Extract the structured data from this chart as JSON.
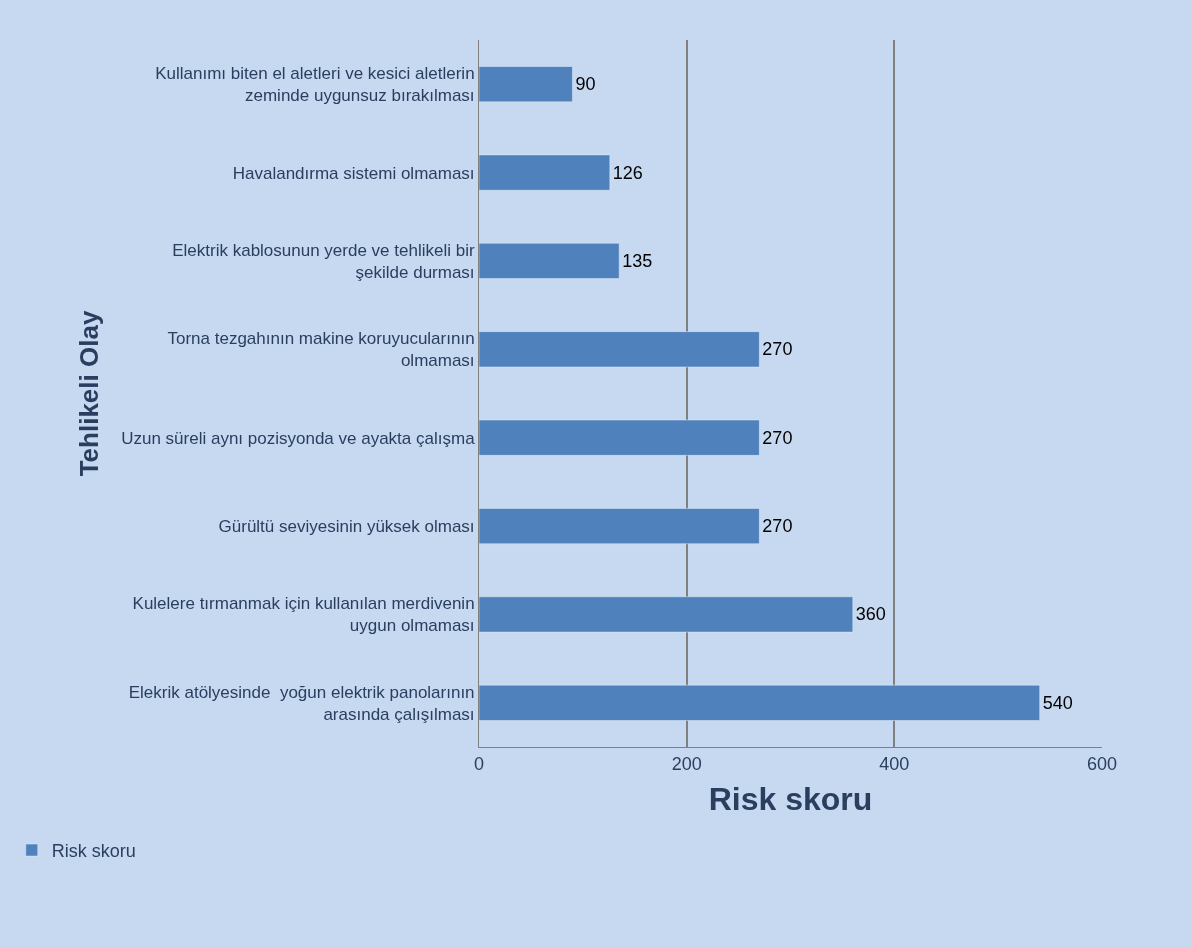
{
  "chart_data": {
    "type": "bar",
    "orientation": "horizontal",
    "xlabel": "Risk skoru",
    "ylabel": "Tehlikeli Olay",
    "categories": [
      "Kullanımı biten el aletleri ve kesici aletlerin zeminde uygunsuz bırakılması",
      "Havalandırma sistemi olmaması",
      "Elektrik kablosunun yerde ve tehlikeli bir şekilde durması",
      "Torna tezgahının makine koruyucularının olmaması",
      "Uzun süreli aynı pozisyonda ve ayakta çalışma",
      "Gürültü seviyesinin yüksek olması",
      "Kulelere tırmanmak için kullanılan merdivenin uygun olmaması",
      "Elekrik atölyesinde  yoğun elektrik panolarının arasında çalışılması"
    ],
    "series": [
      {
        "name": "Risk skoru",
        "color": "#4f81bd",
        "values": [
          90,
          126,
          135,
          270,
          270,
          270,
          360,
          540
        ]
      }
    ],
    "xlim": [
      0,
      600
    ],
    "xticks": [
      0,
      200,
      400,
      600
    ],
    "grid": "x",
    "legend": "bottom left",
    "data_labels": true
  }
}
